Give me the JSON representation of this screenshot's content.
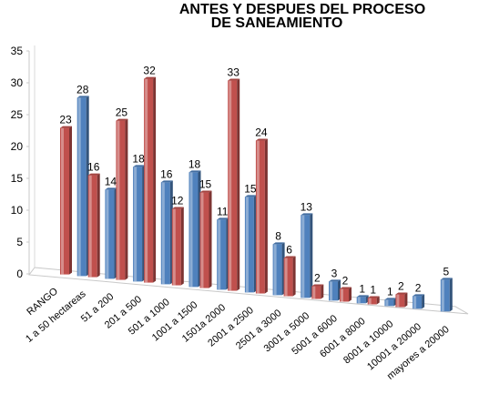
{
  "chart_data": {
    "type": "bar",
    "title_lines": [
      "ANTES Y DESPUES DEL PROCESO",
      "DE SANEAMIENTO"
    ],
    "categories": [
      "RANGO",
      "1 a 50 hectareas",
      "51 a 200",
      "201 a 500",
      "501 a 1000",
      "1001 a 1500",
      "1501a 2000",
      "2001 a 2500",
      "2501 a 3000",
      "3001 a 5000",
      "5001 a 6000",
      "6001 a 8000",
      "8001 a 10000",
      "10001 a 20000",
      "mayores a 20000"
    ],
    "series": [
      {
        "color": "#4f81bd",
        "values": [
          null,
          28,
          14,
          18,
          16,
          18,
          11,
          15,
          8,
          13,
          3,
          1,
          1,
          2,
          5
        ]
      },
      {
        "color": "#c0504d",
        "values": [
          23,
          16,
          25,
          32,
          12,
          15,
          33,
          24,
          6,
          2,
          2,
          1,
          2,
          null,
          null
        ]
      }
    ],
    "ylim": [
      0,
      35
    ],
    "yticks": [
      0,
      5,
      10,
      15,
      20,
      25,
      30,
      35
    ],
    "grid": false,
    "legend": "none"
  }
}
